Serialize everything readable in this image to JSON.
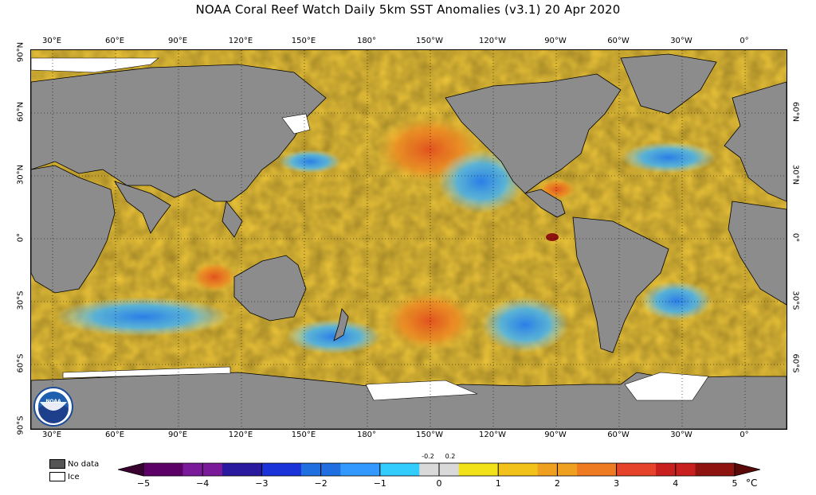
{
  "title": "NOAA Coral Reef Watch Daily 5km SST Anomalies  (v3.1)   20 Apr 2020",
  "lon_labels": [
    "30°E",
    "60°E",
    "90°E",
    "120°E",
    "150°E",
    "180°",
    "150°W",
    "120°W",
    "90°W",
    "60°W",
    "30°W",
    "0°"
  ],
  "lat_labels_left": [
    "90°N",
    "60°N",
    "30°N",
    "0°",
    "30°S",
    "60°S",
    "90°S"
  ],
  "lat_labels_right": [
    "60°N",
    "30°N",
    "0°",
    "30°S",
    "60°S"
  ],
  "legend": {
    "no_data": "No data",
    "ice": "Ice",
    "no_data_color": "#555555",
    "ice_color": "#ffffff"
  },
  "colorbar": {
    "ticks": [
      "−5",
      "−4",
      "−3",
      "−2",
      "−1",
      "0",
      "1",
      "2",
      "3",
      "4",
      "5"
    ],
    "small_ticks": [
      "-0.2",
      "0.2"
    ],
    "unit": "°C",
    "colors": [
      "#3a0030",
      "#5c0068",
      "#7a1a9a",
      "#2a1a9e",
      "#1a33d9",
      "#1f6fe0",
      "#3399ff",
      "#33ccff",
      "#d9d9d9",
      "#f2e21a",
      "#f2c21a",
      "#f0a020",
      "#ee7a22",
      "#e6442a",
      "#c8201e",
      "#8e1410",
      "#5a0a08"
    ]
  },
  "land_color": "#8c8c8c",
  "ocean_base_color": "#f2c93a",
  "logo_text": "NOAA"
}
